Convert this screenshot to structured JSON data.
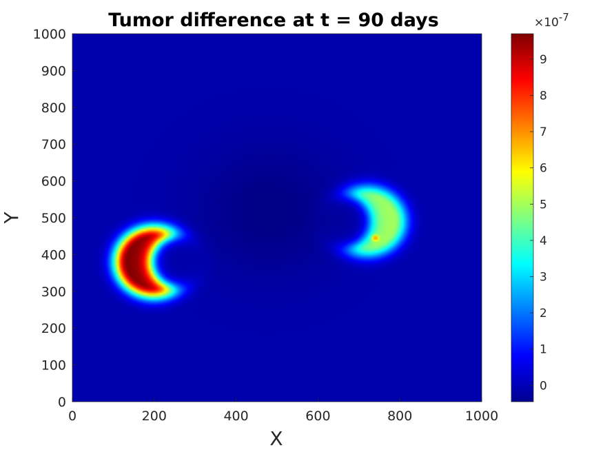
{
  "chart_data": {
    "type": "heatmap",
    "title": "Tumor difference at t = 90 days",
    "xlabel": "X",
    "ylabel": "Y",
    "xlim": [
      0,
      1000
    ],
    "ylim": [
      0,
      1000
    ],
    "x_ticks": [
      "0",
      "200",
      "400",
      "600",
      "800",
      "1000"
    ],
    "y_ticks": [
      "0",
      "100",
      "200",
      "300",
      "400",
      "500",
      "600",
      "700",
      "800",
      "900",
      "1000"
    ],
    "colormap": "jet",
    "color_range": [
      -4.5e-08,
      9.7e-07
    ],
    "colorbar": {
      "exponent_base": "×10",
      "exponent": "-7",
      "ticks": [
        "0",
        "1",
        "2",
        "3",
        "4",
        "5",
        "6",
        "7",
        "8",
        "9"
      ],
      "tick_values": [
        0,
        1,
        2,
        3,
        4,
        5,
        6,
        7,
        8,
        9
      ],
      "location": "right"
    },
    "background_value": 0.0,
    "features": [
      {
        "shape": "crescent",
        "center": [
          200,
          380
        ],
        "outer_radius": 120,
        "peak_value": 9.7e-07,
        "opens": "right"
      },
      {
        "shape": "crescent",
        "center": [
          720,
          490
        ],
        "outer_radius": 120,
        "peak_value": 5e-07,
        "opens": "left",
        "spot": [
          740,
          445
        ]
      },
      {
        "shape": "depression",
        "center": [
          480,
          520
        ],
        "radius": 180,
        "min_value": -4e-08
      }
    ]
  }
}
